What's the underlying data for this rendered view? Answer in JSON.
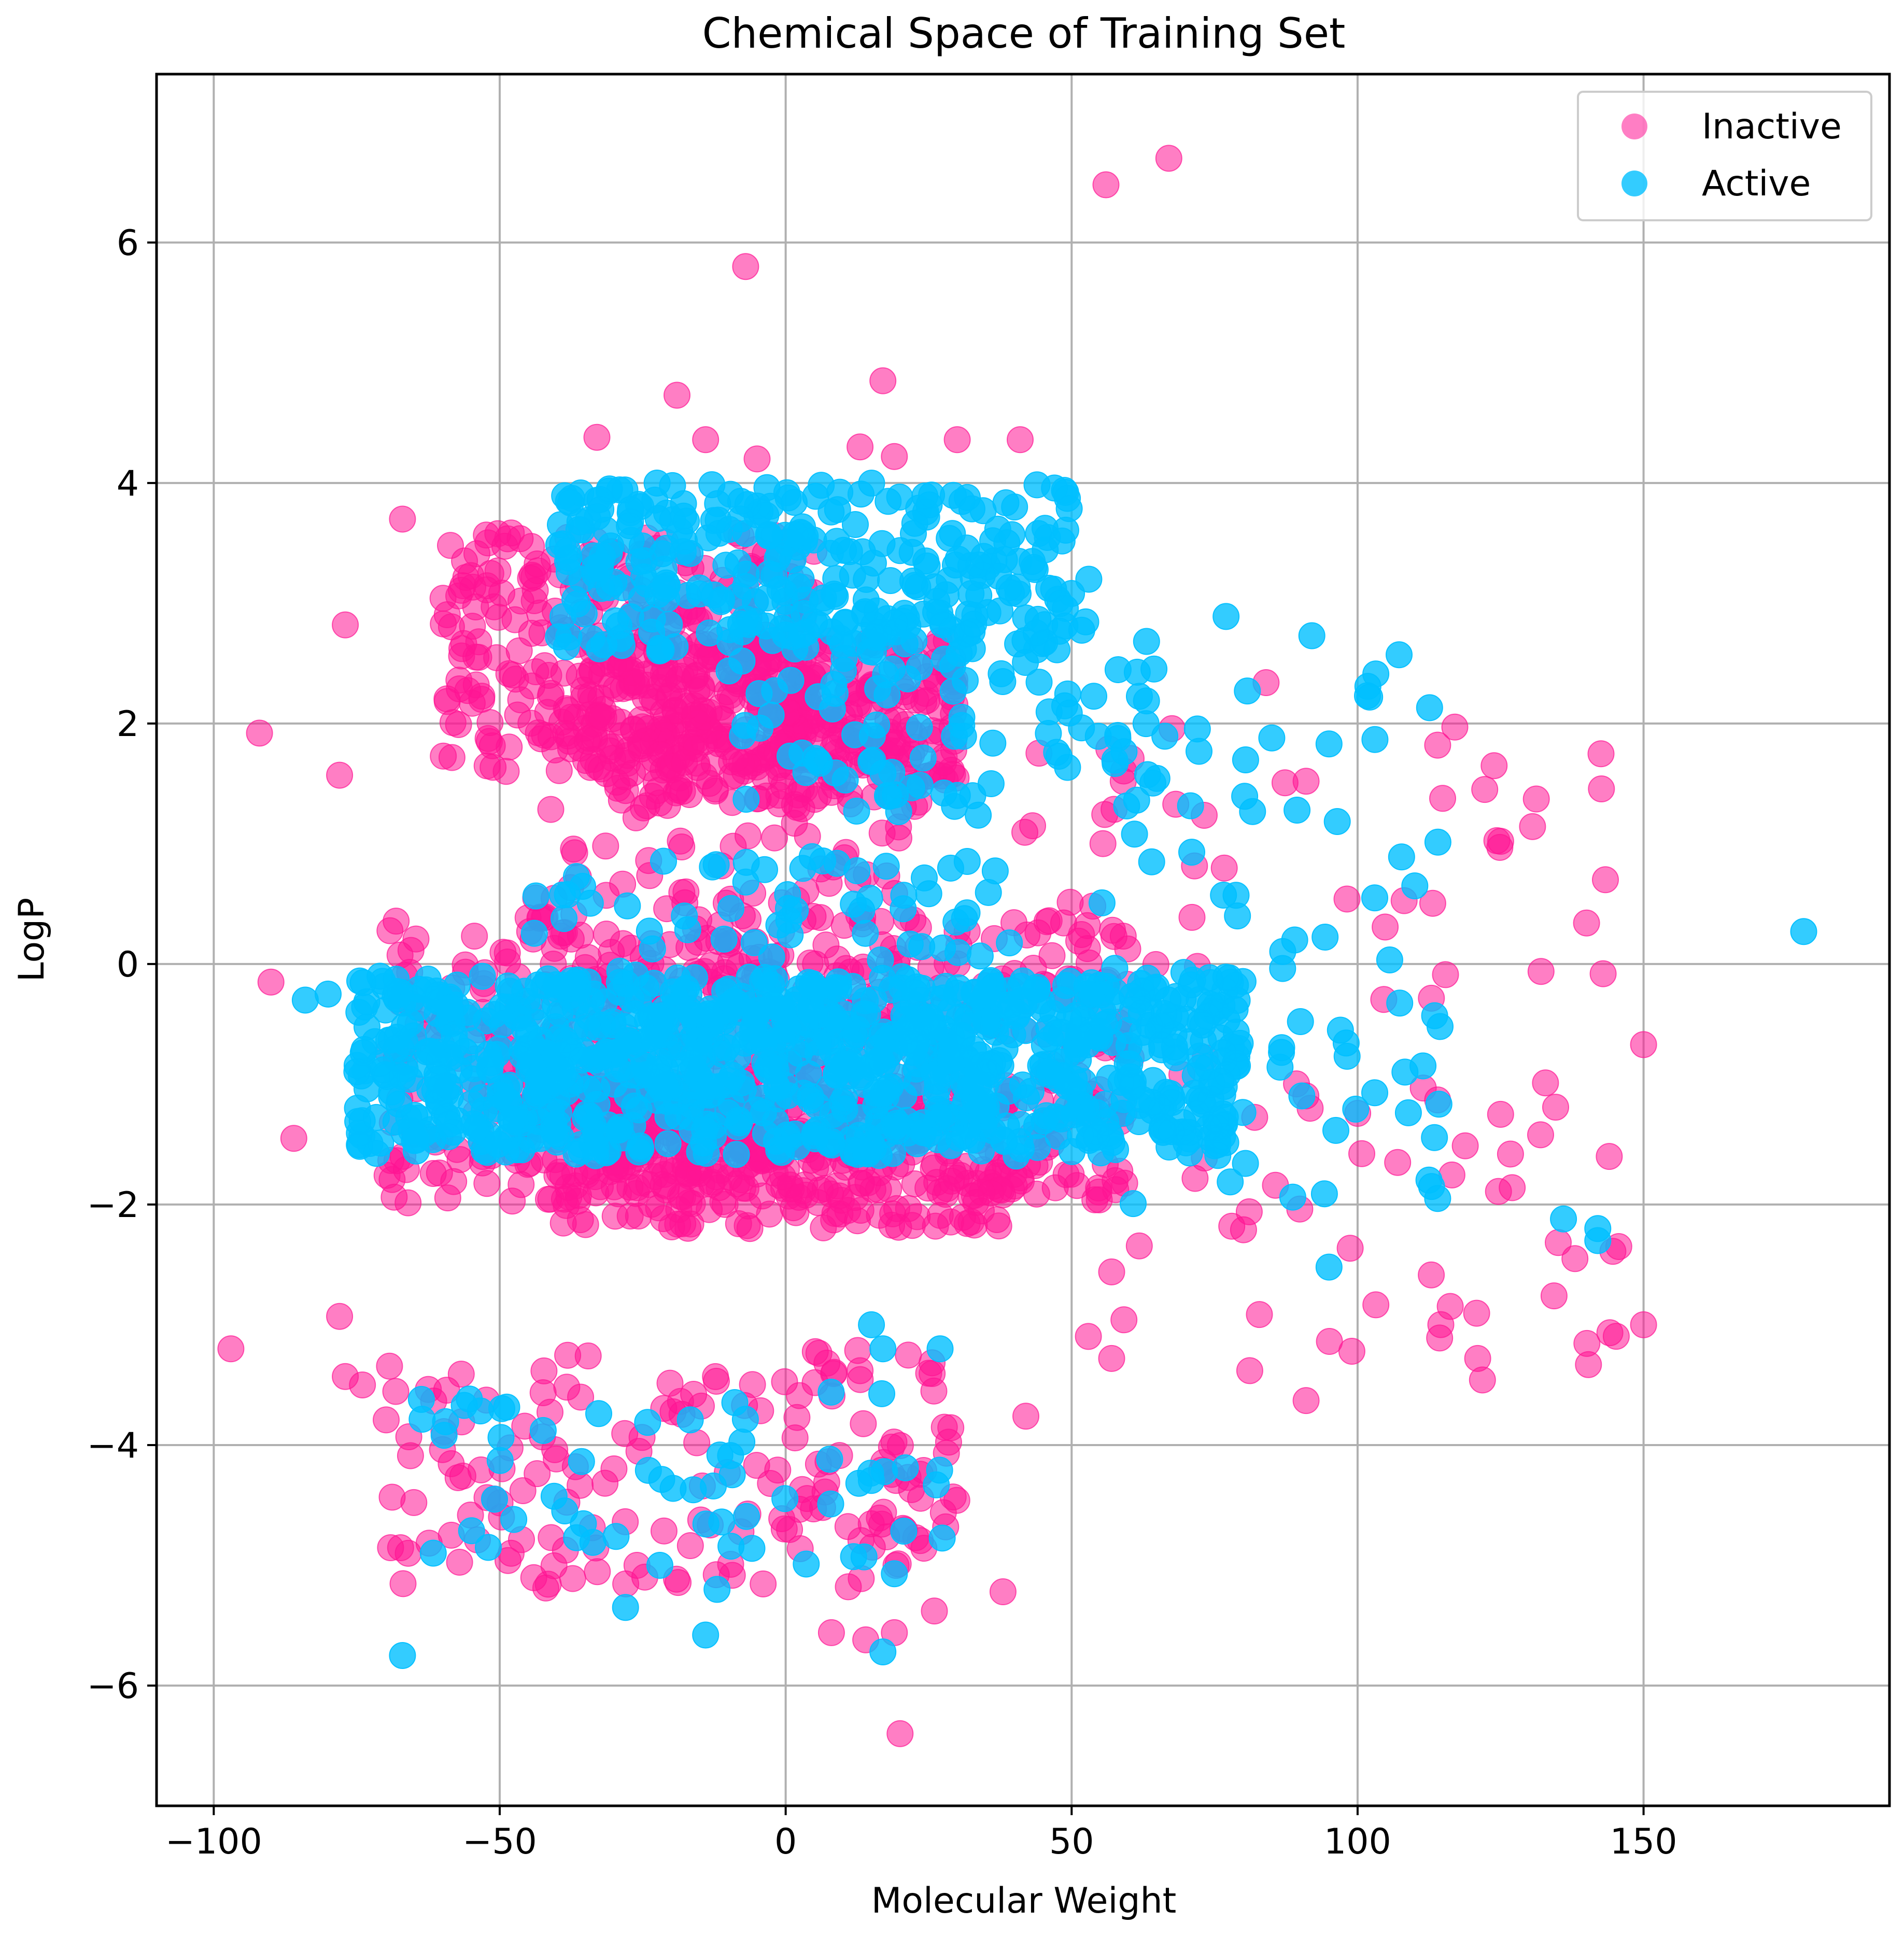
{
  "chart_data": {
    "type": "scatter",
    "title": "Chemical Space of Training Set",
    "xlabel": "Molecular Weight",
    "ylabel": "LogP",
    "xlim": [
      -110,
      193
    ],
    "ylim": [
      -7,
      7.4
    ],
    "grid": true,
    "legend_position": "top-right",
    "x_ticks": [
      -100,
      -50,
      0,
      50,
      100,
      150
    ],
    "x_tick_labels": [
      "−100",
      "−50",
      "0",
      "50",
      "100",
      "150"
    ],
    "y_ticks": [
      -6,
      -4,
      -2,
      0,
      2,
      4,
      6
    ],
    "y_tick_labels": [
      "−6",
      "−4",
      "−2",
      "0",
      "2",
      "4",
      "6"
    ],
    "series": [
      {
        "name": "Inactive",
        "color": "#ff1493",
        "alpha": 0.55,
        "clusters": [
          {
            "x": [
              -60,
              5
            ],
            "y": [
              1.6,
              3.6
            ],
            "n": 320
          },
          {
            "x": [
              -35,
              30
            ],
            "y": [
              1.3,
              2.7
            ],
            "n": 360
          },
          {
            "x": [
              -70,
              60
            ],
            "y": [
              -2.0,
              0.4
            ],
            "n": 520
          },
          {
            "x": [
              -40,
              40
            ],
            "y": [
              -2.2,
              -1.0
            ],
            "n": 300
          },
          {
            "x": [
              -45,
              20
            ],
            "y": [
              -1.4,
              1.3
            ],
            "n": 180
          },
          {
            "x": [
              -70,
              30
            ],
            "y": [
              -5.2,
              -3.2
            ],
            "n": 170
          },
          {
            "x": [
              40,
              150
            ],
            "y": [
              -3.5,
              2.0
            ],
            "n": 90
          }
        ],
        "points": [
          {
            "x": 67,
            "y": 6.7
          },
          {
            "x": 56,
            "y": 6.48
          },
          {
            "x": -7,
            "y": 5.8
          },
          {
            "x": 17,
            "y": 4.85
          },
          {
            "x": -19,
            "y": 4.73
          },
          {
            "x": 20,
            "y": -6.4
          },
          {
            "x": -97,
            "y": -3.2
          },
          {
            "x": -92,
            "y": 1.92
          },
          {
            "x": -90,
            "y": -0.15
          },
          {
            "x": -86,
            "y": -1.45
          },
          {
            "x": 150,
            "y": -0.67
          },
          {
            "x": 150,
            "y": -3.0
          },
          {
            "x": 144,
            "y": -1.6
          },
          {
            "x": 138,
            "y": -2.45
          },
          {
            "x": 132,
            "y": -1.42
          },
          {
            "x": 125,
            "y": -1.25
          },
          {
            "x": 121,
            "y": -3.28
          },
          {
            "x": 117,
            "y": 1.97
          },
          {
            "x": 114,
            "y": 1.82
          },
          {
            "x": 114,
            "y": -1.13
          },
          {
            "x": 107,
            "y": -1.65
          },
          {
            "x": 99,
            "y": -3.22
          },
          {
            "x": 91,
            "y": -3.63
          },
          {
            "x": 91,
            "y": 1.52
          },
          {
            "x": 84,
            "y": 2.34
          },
          {
            "x": 78,
            "y": -2.18
          },
          {
            "x": 72,
            "y": -0.02
          },
          {
            "x": 38,
            "y": -5.22
          },
          {
            "x": 42,
            "y": -3.76
          },
          {
            "x": 30,
            "y": 4.36
          },
          {
            "x": 41,
            "y": 4.36
          },
          {
            "x": 57,
            "y": -3.28
          },
          {
            "x": 57,
            "y": -2.56
          },
          {
            "x": 14,
            "y": -5.62
          },
          {
            "x": 19,
            "y": -5.56
          },
          {
            "x": 8,
            "y": -5.56
          },
          {
            "x": -33,
            "y": 4.38
          },
          {
            "x": -14,
            "y": 4.36
          },
          {
            "x": -5,
            "y": 4.2
          },
          {
            "x": 13,
            "y": 4.3
          },
          {
            "x": 19,
            "y": 4.22
          },
          {
            "x": -67,
            "y": 3.7
          },
          {
            "x": -77,
            "y": 2.82
          },
          {
            "x": -78,
            "y": 1.57
          },
          {
            "x": -78,
            "y": -2.93
          },
          {
            "x": -66,
            "y": -4.9
          },
          {
            "x": -77,
            "y": -3.43
          },
          {
            "x": -74,
            "y": -3.5
          },
          {
            "x": -48,
            "y": -4.9
          },
          {
            "x": -26,
            "y": -5.0
          },
          {
            "x": 26,
            "y": -5.38
          }
        ]
      },
      {
        "name": "Active",
        "color": "#00bfff",
        "alpha": 0.8,
        "clusters": [
          {
            "x": [
              -40,
              50
            ],
            "y": [
              2.6,
              4.0
            ],
            "n": 300
          },
          {
            "x": [
              -10,
              65
            ],
            "y": [
              1.2,
              2.9
            ],
            "n": 120
          },
          {
            "x": [
              -75,
              80
            ],
            "y": [
              -1.6,
              -0.1
            ],
            "n": 900
          },
          {
            "x": [
              -45,
              40
            ],
            "y": [
              -1.1,
              0.9
            ],
            "n": 140
          },
          {
            "x": [
              -65,
              30
            ],
            "y": [
              -5.0,
              -3.5
            ],
            "n": 60
          },
          {
            "x": [
              50,
              115
            ],
            "y": [
              -2.2,
              2.9
            ],
            "n": 60
          }
        ],
        "points": [
          {
            "x": 178,
            "y": 0.27
          },
          {
            "x": 142,
            "y": -2.3
          },
          {
            "x": 142,
            "y": -2.2
          },
          {
            "x": 136,
            "y": -2.12
          },
          {
            "x": 114,
            "y": -1.95
          },
          {
            "x": 110,
            "y": 0.65
          },
          {
            "x": 103,
            "y": 0.55
          },
          {
            "x": 103,
            "y": -1.07
          },
          {
            "x": 97,
            "y": -0.55
          },
          {
            "x": 95,
            "y": 1.83
          },
          {
            "x": 95,
            "y": -2.52
          },
          {
            "x": 92,
            "y": 2.73
          },
          {
            "x": 89,
            "y": 0.2
          },
          {
            "x": 77,
            "y": 2.89
          },
          {
            "x": 71,
            "y": 0.93
          },
          {
            "x": -67,
            "y": -5.75
          },
          {
            "x": -14,
            "y": -5.58
          },
          {
            "x": 17,
            "y": -5.72
          },
          {
            "x": 19,
            "y": -5.07
          },
          {
            "x": -12,
            "y": -5.2
          },
          {
            "x": -28,
            "y": -5.35
          },
          {
            "x": -22,
            "y": -5.0
          },
          {
            "x": 27,
            "y": -3.2
          },
          {
            "x": 17,
            "y": -3.2
          },
          {
            "x": 15,
            "y": -3.0
          },
          {
            "x": -84,
            "y": -0.3
          },
          {
            "x": -80,
            "y": -0.25
          },
          {
            "x": 53,
            "y": 3.2
          },
          {
            "x": 64,
            "y": 0.85
          },
          {
            "x": 79,
            "y": 0.4
          },
          {
            "x": 85,
            "y": 1.88
          },
          {
            "x": 61,
            "y": 1.08
          }
        ]
      }
    ]
  }
}
